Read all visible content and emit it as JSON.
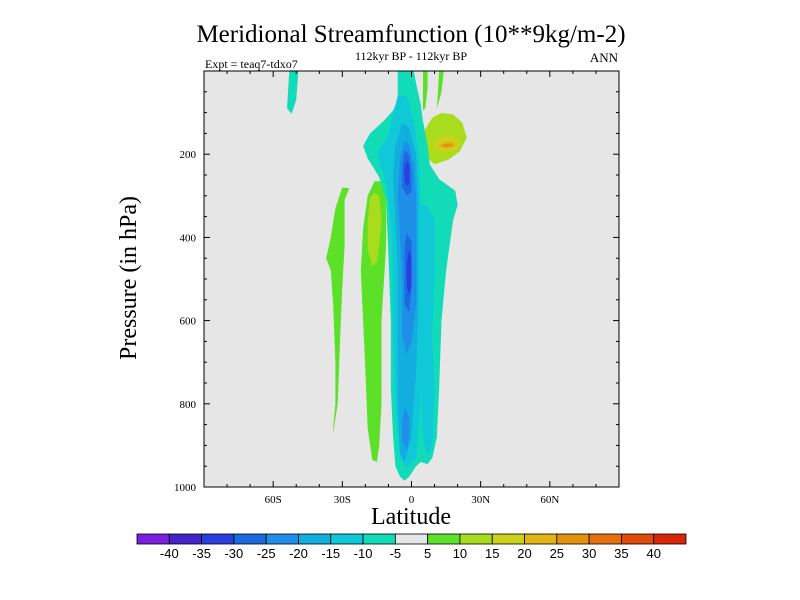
{
  "chart_data": {
    "type": "contour",
    "title": "Meridional Streamfunction (10**9kg/m-2)",
    "subtitle": "112kyr BP - 112kyr BP",
    "left_label": "Expt = teaq7-tdxo7",
    "right_label": "ANN",
    "xlabel": "Latitude",
    "ylabel": "Pressure (in hPa)",
    "xlim": [
      -90,
      90
    ],
    "ylim": [
      0,
      1000
    ],
    "y_inverted": true,
    "x_ticks": [
      {
        "value": -60,
        "label": "60S"
      },
      {
        "value": -30,
        "label": "30S"
      },
      {
        "value": 0,
        "label": "0"
      },
      {
        "value": 30,
        "label": "30N"
      },
      {
        "value": 60,
        "label": "60N"
      }
    ],
    "y_ticks": [
      {
        "value": 200,
        "label": "200"
      },
      {
        "value": 400,
        "label": "400"
      },
      {
        "value": 600,
        "label": "600"
      },
      {
        "value": 800,
        "label": "800"
      },
      {
        "value": 1000,
        "label": "1000"
      }
    ],
    "background_color": "#e6e6e6",
    "colorbar": {
      "levels": [
        -40,
        -35,
        -30,
        -25,
        -20,
        -15,
        -10,
        -5,
        5,
        10,
        15,
        20,
        25,
        30,
        35,
        40
      ],
      "labels": [
        "-40",
        "-35",
        "-30",
        "-25",
        "-20",
        "-15",
        "-10",
        "-5",
        "5",
        "10",
        "15",
        "20",
        "25",
        "30",
        "35",
        "40"
      ],
      "colors": [
        "#7a1ee0",
        "#4422cc",
        "#2a3ee0",
        "#1c6ae0",
        "#1e8ee8",
        "#12aee0",
        "#10c8d8",
        "#12dcb8",
        "#e6e6e6",
        "#5ce028",
        "#a8dc1c",
        "#ccd21c",
        "#e0b414",
        "#e4920e",
        "#e4700e",
        "#e04a0a",
        "#d82608"
      ]
    },
    "regions": [
      {
        "name": "nh-upper-cell-10",
        "level": 10,
        "points": [
          [
            9,
            112
          ],
          [
            13,
            101
          ],
          [
            18,
            104
          ],
          [
            22,
            124
          ],
          [
            24,
            160
          ],
          [
            21,
            193
          ],
          [
            16,
            213
          ],
          [
            10,
            224
          ],
          [
            7,
            210
          ],
          [
            5,
            175
          ],
          [
            6,
            140
          ]
        ]
      },
      {
        "name": "nh-upper-cell-15",
        "level": 15,
        "points": [
          [
            10,
            168
          ],
          [
            13,
            158
          ],
          [
            17,
            155
          ],
          [
            21,
            167
          ],
          [
            21,
            185
          ],
          [
            17,
            195
          ],
          [
            12,
            196
          ],
          [
            9,
            185
          ]
        ]
      },
      {
        "name": "nh-upper-cell-20",
        "level": 20,
        "points": [
          [
            13,
            175
          ],
          [
            16,
            170
          ],
          [
            19,
            172
          ],
          [
            19,
            182
          ],
          [
            15,
            186
          ],
          [
            12,
            182
          ]
        ]
      },
      {
        "name": "nh-upper-cell-25",
        "level": 25,
        "points": [
          [
            14,
            176
          ],
          [
            17,
            174
          ],
          [
            18,
            180
          ],
          [
            15,
            183
          ],
          [
            13,
            180
          ]
        ]
      },
      {
        "name": "nh-upper-stalk-l",
        "level": 5,
        "points": [
          [
            5,
            0
          ],
          [
            7,
            0
          ],
          [
            7,
            40
          ],
          [
            6,
            90
          ],
          [
            5,
            95
          ]
        ]
      },
      {
        "name": "nh-upper-stalk-r",
        "level": 5,
        "points": [
          [
            12,
            0
          ],
          [
            14,
            0
          ],
          [
            13,
            50
          ],
          [
            11,
            90
          ]
        ]
      },
      {
        "name": "sh-high-lat-tongue",
        "level": -5,
        "points": [
          [
            -53,
            0
          ],
          [
            -49,
            0
          ],
          [
            -50,
            70
          ],
          [
            -52,
            103
          ],
          [
            -54,
            90
          ]
        ]
      },
      {
        "name": "sh-thin-plume-5",
        "level": 5,
        "points": [
          [
            -29,
            310
          ],
          [
            -27,
            282
          ],
          [
            -30,
            280
          ],
          [
            -33,
            330
          ],
          [
            -35,
            400
          ],
          [
            -37,
            450
          ],
          [
            -35,
            480
          ],
          [
            -34,
            560
          ],
          [
            -33,
            700
          ],
          [
            -33,
            800
          ],
          [
            -34,
            860
          ],
          [
            -34,
            870
          ],
          [
            -32,
            800
          ],
          [
            -31,
            650
          ],
          [
            -30,
            520
          ],
          [
            -29,
            420
          ]
        ]
      },
      {
        "name": "sh-main-cell-5",
        "level": 5,
        "points": [
          [
            -16,
            265
          ],
          [
            -13,
            265
          ],
          [
            -11,
            310
          ],
          [
            -11,
            420
          ],
          [
            -13,
            600
          ],
          [
            -13,
            800
          ],
          [
            -14,
            900
          ],
          [
            -15,
            940
          ],
          [
            -17,
            935
          ],
          [
            -19,
            860
          ],
          [
            -20,
            720
          ],
          [
            -21,
            600
          ],
          [
            -22,
            480
          ],
          [
            -21,
            380
          ],
          [
            -19,
            300
          ]
        ]
      },
      {
        "name": "sh-main-cell-10",
        "level": 10,
        "points": [
          [
            -16,
            292
          ],
          [
            -14,
            300
          ],
          [
            -13,
            360
          ],
          [
            -14,
            420
          ],
          [
            -15,
            460
          ],
          [
            -17,
            470
          ],
          [
            -19,
            430
          ],
          [
            -19,
            360
          ],
          [
            -18,
            305
          ]
        ]
      },
      {
        "name": "eq-cell-neg5",
        "level": -5,
        "points": [
          [
            -6,
            0
          ],
          [
            1,
            0
          ],
          [
            2,
            30
          ],
          [
            4,
            80
          ],
          [
            5,
            120
          ],
          [
            7,
            180
          ],
          [
            8,
            225
          ],
          [
            12,
            260
          ],
          [
            19,
            288
          ],
          [
            20,
            322
          ],
          [
            18,
            360
          ],
          [
            15,
            480
          ],
          [
            13,
            600
          ],
          [
            12,
            760
          ],
          [
            11,
            880
          ],
          [
            9,
            930
          ],
          [
            7,
            945
          ],
          [
            4,
            940
          ],
          [
            2,
            950
          ],
          [
            -1,
            975
          ],
          [
            -3,
            985
          ],
          [
            -5,
            975
          ],
          [
            -7,
            950
          ],
          [
            -8,
            880
          ],
          [
            -9,
            760
          ],
          [
            -9,
            600
          ],
          [
            -10,
            440
          ],
          [
            -11,
            310
          ],
          [
            -14,
            255
          ],
          [
            -19,
            210
          ],
          [
            -21,
            180
          ],
          [
            -18,
            150
          ],
          [
            -12,
            120
          ],
          [
            -8,
            95
          ],
          [
            -6,
            70
          ]
        ]
      },
      {
        "name": "eq-cell-neg10",
        "level": -10,
        "points": [
          [
            -6,
            60
          ],
          [
            -2,
            60
          ],
          [
            1,
            120
          ],
          [
            3,
            200
          ],
          [
            4,
            300
          ],
          [
            4,
            420
          ],
          [
            5,
            600
          ],
          [
            4,
            800
          ],
          [
            2,
            930
          ],
          [
            -2,
            955
          ],
          [
            -5,
            930
          ],
          [
            -7,
            800
          ],
          [
            -8,
            640
          ],
          [
            -8,
            480
          ],
          [
            -9,
            360
          ],
          [
            -11,
            270
          ],
          [
            -15,
            200
          ],
          [
            -10,
            155
          ]
        ]
      },
      {
        "name": "eq-cell-neg15",
        "level": -15,
        "points": [
          [
            -4,
            125
          ],
          [
            -1,
            135
          ],
          [
            2,
            200
          ],
          [
            3,
            320
          ],
          [
            3,
            440
          ],
          [
            3,
            560
          ],
          [
            2,
            720
          ],
          [
            0,
            880
          ],
          [
            -3,
            940
          ],
          [
            -5,
            920
          ],
          [
            -6,
            780
          ],
          [
            -6,
            620
          ],
          [
            -6,
            480
          ],
          [
            -7,
            360
          ],
          [
            -8,
            260
          ],
          [
            -7,
            180
          ]
        ]
      },
      {
        "name": "eq-cell-neg20",
        "level": -20,
        "points": [
          [
            -3,
            168
          ],
          [
            -1,
            178
          ],
          [
            1,
            225
          ],
          [
            2,
            300
          ],
          [
            2,
            420
          ],
          [
            2,
            560
          ],
          [
            0,
            650
          ],
          [
            -2,
            680
          ],
          [
            -4,
            640
          ],
          [
            -4,
            520
          ],
          [
            -5,
            400
          ],
          [
            -6,
            300
          ],
          [
            -5,
            210
          ]
        ]
      },
      {
        "name": "eq-cell-neg25",
        "level": -25,
        "points": [
          [
            -3,
            190
          ],
          [
            -1,
            200
          ],
          [
            0,
            245
          ],
          [
            0,
            290
          ],
          [
            -2,
            300
          ],
          [
            -4,
            280
          ],
          [
            -4,
            230
          ]
        ]
      },
      {
        "name": "eq-cell-neg25b",
        "level": -25,
        "points": [
          [
            -2,
            390
          ],
          [
            0,
            410
          ],
          [
            0,
            520
          ],
          [
            -1,
            580
          ],
          [
            -3,
            560
          ],
          [
            -3,
            480
          ],
          [
            -3,
            420
          ]
        ]
      },
      {
        "name": "eq-cell-neg30",
        "level": -30,
        "points": [
          [
            -2,
            215
          ],
          [
            -1,
            225
          ],
          [
            -1,
            270
          ],
          [
            -2,
            278
          ],
          [
            -3,
            260
          ],
          [
            -3,
            232
          ]
        ]
      },
      {
        "name": "eq-cell-neg30b",
        "level": -30,
        "points": [
          [
            -1,
            430
          ],
          [
            0,
            450
          ],
          [
            0,
            510
          ],
          [
            -1,
            540
          ],
          [
            -2,
            520
          ],
          [
            -2,
            460
          ]
        ]
      },
      {
        "name": "eq-lower-neg20",
        "level": -20,
        "points": [
          [
            -3,
            810
          ],
          [
            -1,
            830
          ],
          [
            -1,
            880
          ],
          [
            -2,
            910
          ],
          [
            -4,
            890
          ],
          [
            -4,
            840
          ]
        ]
      },
      {
        "name": "nh-lower-neg15",
        "level": -15,
        "points": [
          [
            7,
            650
          ],
          [
            9,
            670
          ],
          [
            9,
            760
          ],
          [
            8,
            820
          ],
          [
            6,
            800
          ],
          [
            6,
            720
          ]
        ]
      },
      {
        "name": "nh-lower-neg20",
        "level": -20,
        "points": [
          [
            8,
            700
          ],
          [
            9,
            720
          ],
          [
            8,
            780
          ],
          [
            7,
            760
          ]
        ]
      },
      {
        "name": "nh-mid-neg10",
        "level": -10,
        "points": [
          [
            4,
            320
          ],
          [
            7,
            325
          ],
          [
            10,
            360
          ],
          [
            10,
            500
          ],
          [
            9,
            640
          ],
          [
            10,
            760
          ],
          [
            9,
            900
          ],
          [
            7,
            925
          ],
          [
            5,
            880
          ],
          [
            4,
            700
          ],
          [
            4,
            520
          ]
        ]
      }
    ]
  }
}
